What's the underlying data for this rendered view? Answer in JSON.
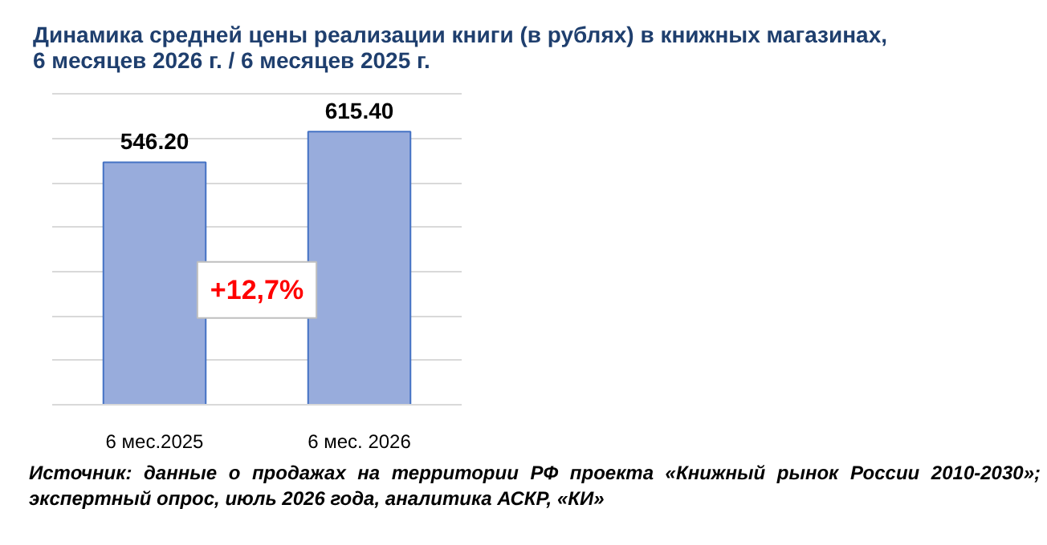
{
  "chart_data": {
    "type": "bar",
    "title": "Динамика средней цены реализации книги (в рублях) в книжных магазинах,\n6 месяцев 2026 г. / 6 месяцев 2025 г.",
    "categories": [
      "6 мес.2025",
      "6 мес. 2026"
    ],
    "values": [
      546.2,
      615.4
    ],
    "color": "#98acdc",
    "data_labels": true,
    "value_labels": [
      "546.20",
      "615.40"
    ],
    "tick_labels": "x",
    "grid": "y",
    "annotations": [
      "+12,7%",
      "Источник: данные о продажах на территории РФ проекта «Книжный рынок России 2010-2030»; экспертный опрос, июль 2026 года, аналитика АСКР, «КИ»"
    ]
  }
}
